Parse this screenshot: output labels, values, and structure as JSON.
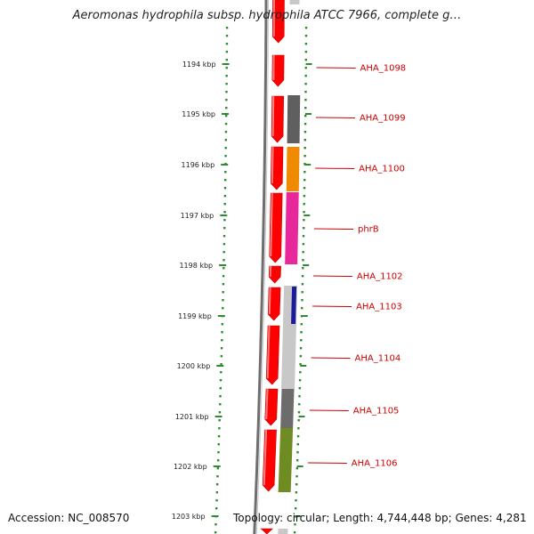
{
  "title": "Aeromonas hydrophila subsp. hydrophila ATCC 7966, complete g…",
  "footer": {
    "accession": "Accession: NC_008570",
    "topology": "Topology: circular; Length: 4,744,448 bp; Genes: 4,281"
  },
  "ticks": [
    {
      "label": "1194 kbp"
    },
    {
      "label": "1195 kbp"
    },
    {
      "label": "1196 kbp"
    },
    {
      "label": "1197 kbp"
    },
    {
      "label": "1198 kbp"
    },
    {
      "label": "1199 kbp"
    },
    {
      "label": "1200 kbp"
    },
    {
      "label": "1201 kbp"
    },
    {
      "label": "1202 kbp"
    },
    {
      "label": "1203 kbp"
    }
  ],
  "genes": [
    {
      "label": "AHA_1098",
      "color": "#5f5f5f"
    },
    {
      "label": "AHA_1099",
      "color": "#5f5f5f"
    },
    {
      "label": "AHA_1100",
      "color": "#f08a00"
    },
    {
      "label": "phrB",
      "color": "#e8289a"
    },
    {
      "label": "AHA_1102",
      "color": "#c8c8c8"
    },
    {
      "label": "AHA_1103",
      "color": "#1c1c9a"
    },
    {
      "label": "AHA_1104",
      "color": "#c0c0c0"
    },
    {
      "label": "AHA_1105",
      "color": "#6c6c6c"
    },
    {
      "label": "AHA_1106",
      "color": "#6e8c22"
    }
  ],
  "colors": {
    "cds": "#ff0000",
    "cds_dark": "#c80000",
    "label": "#cc0000",
    "tick": "#2e8b2e",
    "backbone": "#808080"
  }
}
